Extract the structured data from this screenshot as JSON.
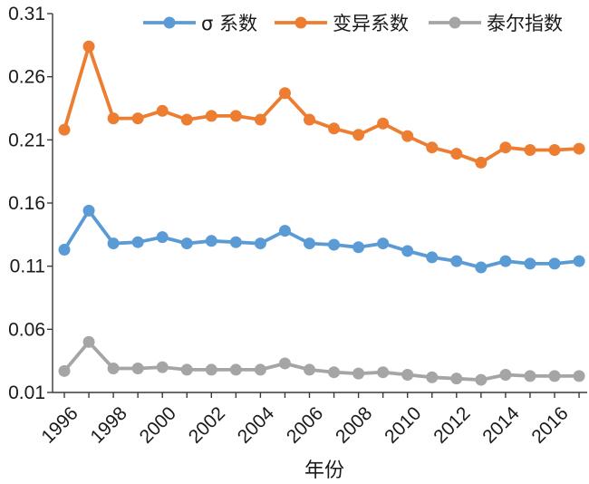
{
  "chart_data": {
    "type": "line",
    "xlabel": "年份",
    "ylabel": "",
    "ylim": [
      0.01,
      0.31
    ],
    "y_ticks": [
      "0.01",
      "0.06",
      "0.11",
      "0.16",
      "0.21",
      "0.26",
      "0.31"
    ],
    "x_tick_labels": [
      "1996",
      "1998",
      "2000",
      "2002",
      "2004",
      "2006",
      "2008",
      "2010",
      "2012",
      "2014",
      "2016"
    ],
    "x": [
      1996,
      1997,
      1998,
      1999,
      2000,
      2001,
      2002,
      2003,
      2004,
      2005,
      2006,
      2007,
      2008,
      2009,
      2010,
      2011,
      2012,
      2013,
      2014,
      2015,
      2016,
      2017
    ],
    "grid": false,
    "legend_position": "top",
    "series": [
      {
        "name": "σ 系数",
        "color": "#5b9bd5",
        "values": [
          0.123,
          0.154,
          0.128,
          0.129,
          0.133,
          0.128,
          0.13,
          0.129,
          0.128,
          0.138,
          0.128,
          0.127,
          0.125,
          0.128,
          0.122,
          0.117,
          0.114,
          0.109,
          0.114,
          0.112,
          0.112,
          0.114
        ]
      },
      {
        "name": "变异系数",
        "color": "#ed7d31",
        "values": [
          0.218,
          0.284,
          0.227,
          0.227,
          0.233,
          0.226,
          0.229,
          0.229,
          0.226,
          0.247,
          0.226,
          0.219,
          0.214,
          0.223,
          0.213,
          0.204,
          0.199,
          0.192,
          0.204,
          0.202,
          0.202,
          0.203
        ]
      },
      {
        "name": "泰尔指数",
        "color": "#a5a5a5",
        "values": [
          0.027,
          0.05,
          0.029,
          0.029,
          0.03,
          0.028,
          0.028,
          0.028,
          0.028,
          0.033,
          0.028,
          0.026,
          0.025,
          0.026,
          0.024,
          0.022,
          0.021,
          0.02,
          0.024,
          0.023,
          0.023,
          0.023
        ]
      }
    ]
  }
}
